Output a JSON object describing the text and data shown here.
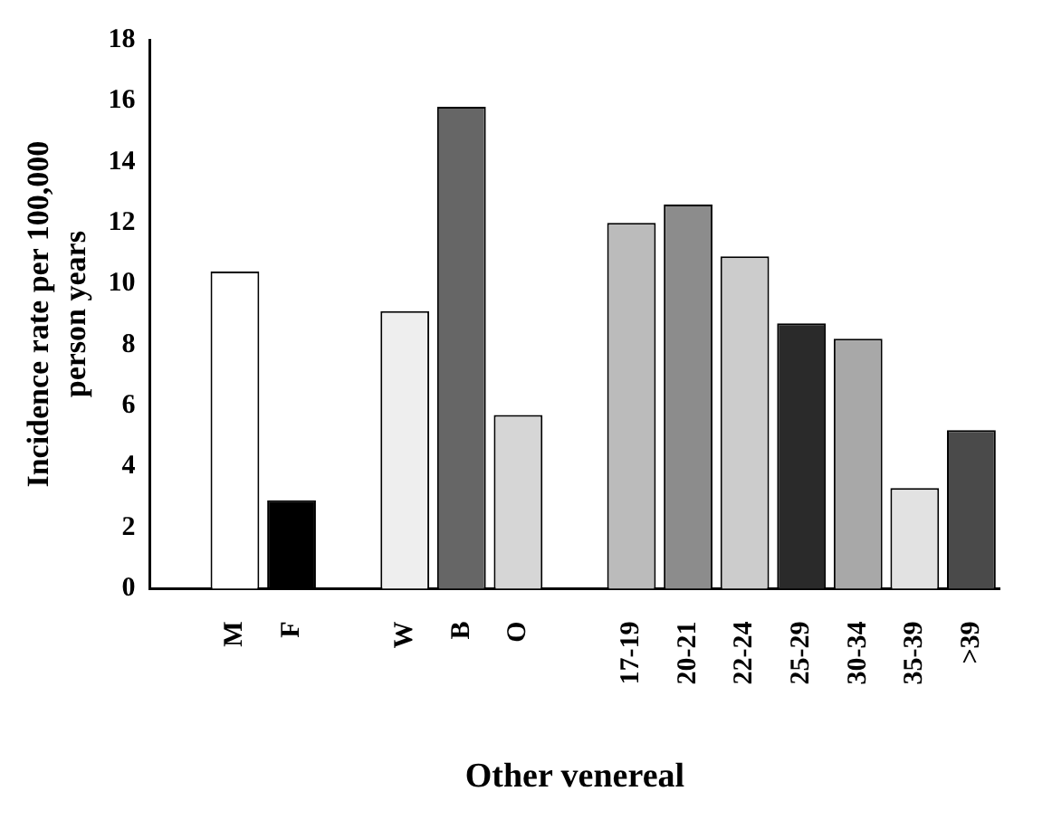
{
  "chart_data": {
    "type": "bar",
    "xlabel": "Other venereal",
    "ylabel": "Incidence rate per 100,000 person years",
    "categories": [
      null,
      "M",
      "F",
      null,
      "W",
      "B",
      "O",
      null,
      "17-19",
      "20-21",
      "22-24",
      "25-29",
      "30-34",
      "35-39",
      ">39"
    ],
    "values": [
      null,
      10.4,
      2.9,
      null,
      9.1,
      15.8,
      5.7,
      null,
      12.0,
      12.6,
      10.9,
      8.7,
      8.2,
      3.3,
      5.2
    ],
    "colors": [
      null,
      "#ffffff",
      "#000000",
      null,
      "#eeeeee",
      "#666666",
      "#d6d6d6",
      null,
      "#bbbbbb",
      "#8c8c8c",
      "#cccccc",
      "#2a2a2a",
      "#a8a8a8",
      "#e2e2e2",
      "#4a4a4a"
    ],
    "ylim": [
      0,
      18
    ],
    "yticks": [
      0,
      2,
      4,
      6,
      8,
      10,
      12,
      14,
      16,
      18
    ],
    "grid": false,
    "legend": false
  }
}
